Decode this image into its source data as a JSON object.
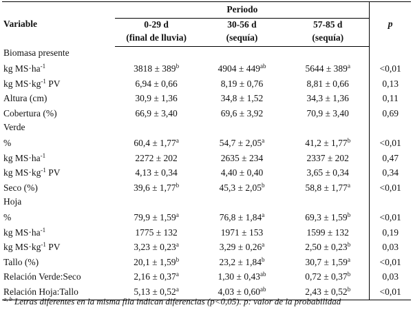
{
  "header": {
    "variable": "Variable",
    "periodo": "Periodo",
    "p": "p",
    "columns": [
      {
        "line1": "0-29 d",
        "line2": "(final de lluvia)"
      },
      {
        "line1": "30-56 d",
        "line2": "(sequía)"
      },
      {
        "line1": "57-85 d",
        "line2": "(sequía)"
      }
    ]
  },
  "rows": [
    {
      "type": "section",
      "label": "Biomasa presente"
    },
    {
      "type": "data",
      "label": "kg MS·ha",
      "label_sup": "-1",
      "label_suffix": "",
      "values": [
        {
          "v": "3818 ± 389",
          "s": "b"
        },
        {
          "v": "4904 ± 449",
          "s": "ab"
        },
        {
          "v": "5644 ± 389",
          "s": "a"
        }
      ],
      "p": "<0,01"
    },
    {
      "type": "data",
      "label": "kg MS·kg",
      "label_sup": "-1",
      "label_suffix": " PV",
      "values": [
        {
          "v": "6,94 ± 0,66",
          "s": ""
        },
        {
          "v": "8,19 ± 0,76",
          "s": ""
        },
        {
          "v": "8,81 ± 0,66",
          "s": ""
        }
      ],
      "p": "0,13"
    },
    {
      "type": "data",
      "label": "Altura (cm)",
      "label_sup": "",
      "label_suffix": "",
      "values": [
        {
          "v": "30,9 ± 1,36",
          "s": ""
        },
        {
          "v": "34,8 ± 1,52",
          "s": ""
        },
        {
          "v": "34,3 ± 1,36",
          "s": ""
        }
      ],
      "p": "0,11"
    },
    {
      "type": "data",
      "label": "Cobertura (%)",
      "label_sup": "",
      "label_suffix": "",
      "values": [
        {
          "v": "66,9 ± 3,40",
          "s": ""
        },
        {
          "v": "69,6 ± 3,92",
          "s": ""
        },
        {
          "v": "70,9 ± 3,40",
          "s": ""
        }
      ],
      "p": "0,69"
    },
    {
      "type": "section",
      "label": "Verde"
    },
    {
      "type": "data",
      "label": "%",
      "label_sup": "",
      "label_suffix": "",
      "values": [
        {
          "v": "60,4 ± 1,77",
          "s": "a"
        },
        {
          "v": "54,7 ± 2,05",
          "s": "a"
        },
        {
          "v": "41,2 ± 1,77",
          "s": "b"
        }
      ],
      "p": "<0,01"
    },
    {
      "type": "data",
      "label": "kg MS·ha",
      "label_sup": "-1",
      "label_suffix": "",
      "values": [
        {
          "v": "2272 ± 202",
          "s": ""
        },
        {
          "v": "2635 ± 234",
          "s": ""
        },
        {
          "v": "2337 ± 202",
          "s": ""
        }
      ],
      "p": "0,47"
    },
    {
      "type": "data",
      "label": "kg MS·kg",
      "label_sup": "-1",
      "label_suffix": " PV",
      "values": [
        {
          "v": "4,13 ± 0,34",
          "s": ""
        },
        {
          "v": "4,40 ± 0,40",
          "s": ""
        },
        {
          "v": "3,65 ± 0,34",
          "s": ""
        }
      ],
      "p": "0,34"
    },
    {
      "type": "data",
      "label": "Seco (%)",
      "label_sup": "",
      "label_suffix": "",
      "values": [
        {
          "v": "39,6 ± 1,77",
          "s": "b"
        },
        {
          "v": "45,3 ± 2,05",
          "s": "b"
        },
        {
          "v": "58,8 ± 1,77",
          "s": "a"
        }
      ],
      "p": "<0,01"
    },
    {
      "type": "section",
      "label": "Hoja"
    },
    {
      "type": "data",
      "label": "%",
      "label_sup": "",
      "label_suffix": "",
      "values": [
        {
          "v": "79,9 ± 1,59",
          "s": "a"
        },
        {
          "v": "76,8 ± 1,84",
          "s": "a"
        },
        {
          "v": "69,3 ± 1,59",
          "s": "b"
        }
      ],
      "p": "<0,01"
    },
    {
      "type": "data",
      "label": "kg MS·ha",
      "label_sup": "-1",
      "label_suffix": "",
      "values": [
        {
          "v": "1775 ± 132",
          "s": ""
        },
        {
          "v": "1971 ± 153",
          "s": ""
        },
        {
          "v": "1599 ± 132",
          "s": ""
        }
      ],
      "p": "0,19"
    },
    {
      "type": "data",
      "label": "kg MS·kg",
      "label_sup": "-1",
      "label_suffix": " PV",
      "values": [
        {
          "v": "3,23 ± 0,23",
          "s": "a"
        },
        {
          "v": "3,29 ± 0,26",
          "s": "a"
        },
        {
          "v": "2,50 ± 0,23",
          "s": "b"
        }
      ],
      "p": "0,03"
    },
    {
      "type": "data",
      "label": "Tallo (%)",
      "label_sup": "",
      "label_suffix": "",
      "values": [
        {
          "v": "20,1 ± 1,59",
          "s": "b"
        },
        {
          "v": "23,2 ± 1,84",
          "s": "b"
        },
        {
          "v": "30,7 ± 1,59",
          "s": "a"
        }
      ],
      "p": "<0,01"
    },
    {
      "type": "data",
      "label": "Relación Verde:Seco",
      "label_sup": "",
      "label_suffix": "",
      "values": [
        {
          "v": "2,16 ± 0,37",
          "s": "a"
        },
        {
          "v": "1,30 ± 0,43",
          "s": "ab"
        },
        {
          "v": "0,72 ± 0,37",
          "s": "b"
        }
      ],
      "p": "0,03"
    },
    {
      "type": "data",
      "label": "Relación Hoja:Tallo",
      "label_sup": "",
      "label_suffix": "",
      "values": [
        {
          "v": "5,13 ± 0,52",
          "s": "a"
        },
        {
          "v": "4,03 ± 0,60",
          "s": "ab"
        },
        {
          "v": "2,43 ± 0,52",
          "s": "b"
        }
      ],
      "p": "<0,01"
    }
  ],
  "footnote": {
    "sup": "a, b",
    "text": " Letras diferentes en la misma fila indican diferencias (p<0,05). p: valor de la probabilidad"
  }
}
